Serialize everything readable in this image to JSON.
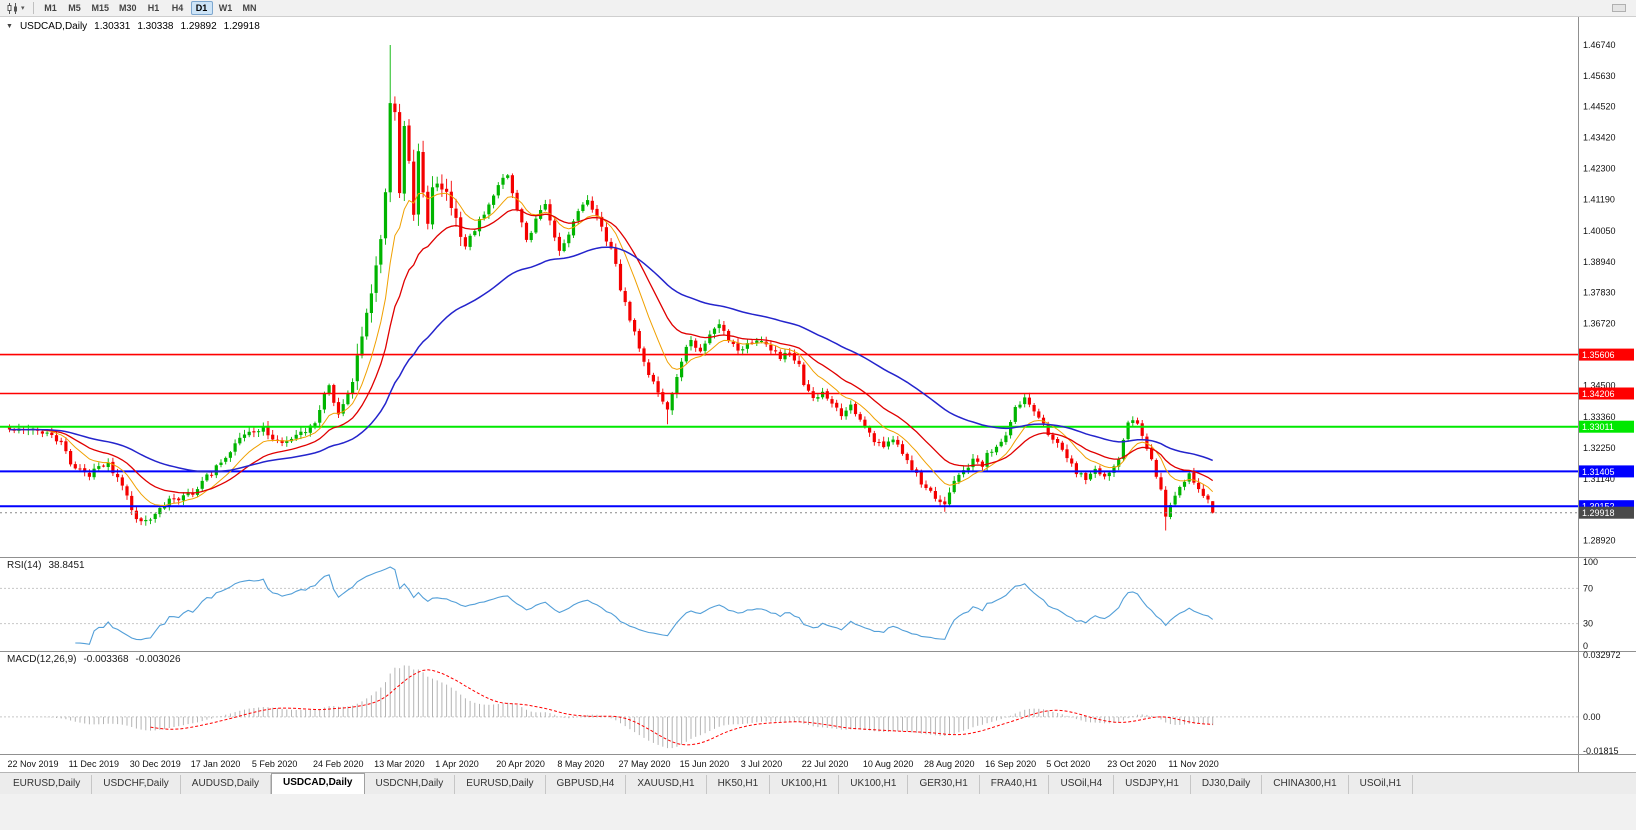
{
  "toolbar": {
    "chart_menu_caret": "▾",
    "timeframes": [
      {
        "label": "M1",
        "active": false
      },
      {
        "label": "M5",
        "active": false
      },
      {
        "label": "M15",
        "active": false
      },
      {
        "label": "M30",
        "active": false
      },
      {
        "label": "H1",
        "active": false
      },
      {
        "label": "H4",
        "active": false
      },
      {
        "label": "D1",
        "active": true
      },
      {
        "label": "W1",
        "active": false
      },
      {
        "label": "MN",
        "active": false
      }
    ]
  },
  "chart": {
    "title": {
      "symbol": "USDCAD,Daily",
      "open": "1.30331",
      "high": "1.30338",
      "low": "1.29892",
      "close": "1.29918"
    },
    "colors": {
      "bull": "#00b400",
      "bear": "#f40000",
      "ma_fast": "#f0a000",
      "ma_mid": "#e00000",
      "ma_slow": "#2424cc",
      "current_tag": "#4a4a4a",
      "rsi_line": "#539fd8",
      "macd_hist": "#b4b4b4",
      "macd_signal": "#ff0000"
    }
  },
  "rsi_panel": {
    "name": "RSI(14)",
    "value": "38.8451",
    "axis": [
      "100",
      "70",
      "30",
      "0"
    ],
    "guide_levels": [
      70,
      30
    ]
  },
  "macd_panel": {
    "name": "MACD(12,26,9)",
    "value_main": "-0.003368",
    "value_signal": "-0.003026",
    "axis_top": "0.032972",
    "axis_zero": "0.00",
    "axis_bottom": "-0.01815"
  },
  "tabs": [
    {
      "label": "EURUSD,Daily",
      "active": false
    },
    {
      "label": "USDCHF,Daily",
      "active": false
    },
    {
      "label": "AUDUSD,Daily",
      "active": false
    },
    {
      "label": "USDCAD,Daily",
      "active": true
    },
    {
      "label": "USDCNH,Daily",
      "active": false
    },
    {
      "label": "EURUSD,Daily",
      "active": false
    },
    {
      "label": "GBPUSD,H4",
      "active": false
    },
    {
      "label": "XAUUSD,H1",
      "active": false
    },
    {
      "label": "HK50,H1",
      "active": false
    },
    {
      "label": "UK100,H1",
      "active": false
    },
    {
      "label": "UK100,H1",
      "active": false
    },
    {
      "label": "GER30,H1",
      "active": false
    },
    {
      "label": "FRA40,H1",
      "active": false
    },
    {
      "label": "USOil,H4",
      "active": false
    },
    {
      "label": "USDJPY,H1",
      "active": false
    },
    {
      "label": "DJ30,Daily",
      "active": false
    },
    {
      "label": "CHINA300,H1",
      "active": false
    },
    {
      "label": "USOil,H1",
      "active": false
    }
  ],
  "chart_data": {
    "type": "candlestick",
    "symbol": "USDCAD",
    "period": "Daily",
    "current_bar": {
      "open": 1.30331,
      "high": 1.30338,
      "low": 1.29892,
      "close": 1.29918
    },
    "visible_price_range": [
      1.28308,
      1.47746
    ],
    "y_axis_ticks": [
      "1.46740",
      "1.45630",
      "1.44520",
      "1.43420",
      "1.42300",
      "1.41190",
      "1.40050",
      "1.38940",
      "1.37830",
      "1.36720",
      "1.35610",
      "1.34500",
      "1.33360",
      "1.32250",
      "1.31140",
      "1.30030",
      "1.28920"
    ],
    "x_axis_ticks": [
      "22 Nov 2019",
      "11 Dec 2019",
      "30 Dec 2019",
      "17 Jan 2020",
      "5 Feb 2020",
      "24 Feb 2020",
      "13 Mar 2020",
      "1 Apr 2020",
      "20 Apr 2020",
      "8 May 2020",
      "27 May 2020",
      "15 Jun 2020",
      "3 Jul 2020",
      "22 Jul 2020",
      "10 Aug 2020",
      "28 Aug 2020",
      "16 Sep 2020",
      "5 Oct 2020",
      "23 Oct 2020",
      "11 Nov 2020"
    ],
    "bars_between_x_ticks": 13,
    "total_bars": 257,
    "close_anchors": [
      [
        0,
        1.3296
      ],
      [
        3,
        1.328
      ],
      [
        6,
        1.3292
      ],
      [
        9,
        1.3262
      ],
      [
        11,
        1.3248
      ],
      [
        13,
        1.3168
      ],
      [
        15,
        1.315
      ],
      [
        17,
        1.3132
      ],
      [
        19,
        1.316
      ],
      [
        21,
        1.3168
      ],
      [
        23,
        1.312
      ],
      [
        25,
        1.3058
      ],
      [
        26,
        1.2992
      ],
      [
        28,
        1.2962
      ],
      [
        30,
        1.2978
      ],
      [
        32,
        1.2998
      ],
      [
        34,
        1.3042
      ],
      [
        36,
        1.3032
      ],
      [
        38,
        1.3056
      ],
      [
        39,
        1.3066
      ],
      [
        41,
        1.3102
      ],
      [
        43,
        1.3138
      ],
      [
        45,
        1.3175
      ],
      [
        47,
        1.3215
      ],
      [
        49,
        1.3262
      ],
      [
        51,
        1.3288
      ],
      [
        52,
        1.3282
      ],
      [
        54,
        1.3296
      ],
      [
        56,
        1.3262
      ],
      [
        58,
        1.3242
      ],
      [
        60,
        1.3256
      ],
      [
        62,
        1.3276
      ],
      [
        64,
        1.3298
      ],
      [
        65,
        1.3312
      ],
      [
        66,
        1.3368
      ],
      [
        67,
        1.343
      ],
      [
        68,
        1.3442
      ],
      [
        69,
        1.3385
      ],
      [
        70,
        1.334
      ],
      [
        71,
        1.3375
      ],
      [
        72,
        1.3412
      ],
      [
        73,
        1.3488
      ],
      [
        74,
        1.3582
      ],
      [
        75,
        1.3648
      ],
      [
        76,
        1.3712
      ],
      [
        77,
        1.3788
      ],
      [
        78,
        1.3858
      ],
      [
        79,
        1.3962
      ],
      [
        80,
        1.4128
      ],
      [
        81,
        1.4482
      ],
      [
        82,
        1.4445
      ],
      [
        83,
        1.415
      ],
      [
        84,
        1.436
      ],
      [
        85,
        1.423
      ],
      [
        86,
        1.408
      ],
      [
        87,
        1.431
      ],
      [
        88,
        1.417
      ],
      [
        89,
        1.403
      ],
      [
        90,
        1.416
      ],
      [
        91,
        1.42
      ],
      [
        93,
        1.4136
      ],
      [
        95,
        1.4038
      ],
      [
        97,
        1.3946
      ],
      [
        99,
        1.4012
      ],
      [
        101,
        1.4072
      ],
      [
        103,
        1.4136
      ],
      [
        104,
        1.4168
      ],
      [
        106,
        1.4208
      ],
      [
        108,
        1.4092
      ],
      [
        110,
        1.3962
      ],
      [
        112,
        1.4046
      ],
      [
        114,
        1.4096
      ],
      [
        116,
        1.3986
      ],
      [
        117,
        1.3932
      ],
      [
        119,
        1.3998
      ],
      [
        121,
        1.4066
      ],
      [
        123,
        1.4112
      ],
      [
        125,
        1.4048
      ],
      [
        127,
        1.3976
      ],
      [
        129,
        1.3892
      ],
      [
        130,
        1.3786
      ],
      [
        132,
        1.3692
      ],
      [
        134,
        1.3586
      ],
      [
        136,
        1.3498
      ],
      [
        138,
        1.3432
      ],
      [
        140,
        1.3372
      ],
      [
        142,
        1.3472
      ],
      [
        143,
        1.3546
      ],
      [
        145,
        1.3612
      ],
      [
        147,
        1.3572
      ],
      [
        149,
        1.3642
      ],
      [
        151,
        1.3676
      ],
      [
        153,
        1.3616
      ],
      [
        155,
        1.3566
      ],
      [
        156,
        1.3586
      ],
      [
        158,
        1.3602
      ],
      [
        160,
        1.3618
      ],
      [
        162,
        1.3578
      ],
      [
        164,
        1.3548
      ],
      [
        166,
        1.3576
      ],
      [
        168,
        1.3516
      ],
      [
        169,
        1.3452
      ],
      [
        171,
        1.3402
      ],
      [
        173,
        1.3422
      ],
      [
        175,
        1.3378
      ],
      [
        177,
        1.3348
      ],
      [
        179,
        1.3378
      ],
      [
        181,
        1.3332
      ],
      [
        182,
        1.3302
      ],
      [
        184,
        1.3252
      ],
      [
        186,
        1.3222
      ],
      [
        188,
        1.3258
      ],
      [
        190,
        1.3198
      ],
      [
        192,
        1.3148
      ],
      [
        194,
        1.3102
      ],
      [
        195,
        1.3088
      ],
      [
        197,
        1.3048
      ],
      [
        199,
        1.3018
      ],
      [
        201,
        1.3098
      ],
      [
        203,
        1.3148
      ],
      [
        205,
        1.3178
      ],
      [
        207,
        1.3158
      ],
      [
        208,
        1.3198
      ],
      [
        210,
        1.3218
      ],
      [
        212,
        1.3278
      ],
      [
        214,
        1.3376
      ],
      [
        216,
        1.3398
      ],
      [
        218,
        1.3348
      ],
      [
        220,
        1.3318
      ],
      [
        221,
        1.3282
      ],
      [
        223,
        1.3248
      ],
      [
        225,
        1.3178
      ],
      [
        227,
        1.3138
      ],
      [
        229,
        1.3118
      ],
      [
        231,
        1.3148
      ],
      [
        233,
        1.3128
      ],
      [
        234,
        1.3138
      ],
      [
        236,
        1.3178
      ],
      [
        238,
        1.3316
      ],
      [
        239,
        1.3328
      ],
      [
        241,
        1.3278
      ],
      [
        243,
        1.3178
      ],
      [
        245,
        1.3078
      ],
      [
        246,
        1.2982
      ],
      [
        247,
        1.3022
      ],
      [
        249,
        1.3095
      ],
      [
        251,
        1.3125
      ],
      [
        253,
        1.3085
      ],
      [
        255,
        1.3035
      ],
      [
        256,
        1.29918
      ]
    ],
    "bar_overrides": [
      {
        "index": 81,
        "high": 1.4674
      },
      {
        "index": 140,
        "low": 1.331
      },
      {
        "index": 199,
        "low": 1.2995
      },
      {
        "index": 246,
        "low": 1.2928
      }
    ],
    "horizontal_levels": [
      {
        "price": 1.35606,
        "color": "#ff0000",
        "width": 1.6,
        "label": "1.35606"
      },
      {
        "price": 1.34206,
        "color": "#ff0000",
        "width": 1.6,
        "label": "1.34206"
      },
      {
        "price": 1.33011,
        "color": "#00e800",
        "width": 2,
        "label": "1.33011"
      },
      {
        "price": 1.31405,
        "color": "#0000ff",
        "width": 2,
        "label": "1.31405"
      },
      {
        "price": 1.30152,
        "color": "#0000ff",
        "width": 2,
        "label": "1.30152"
      }
    ],
    "current_price_line": {
      "price": 1.29918,
      "label": "1.29918"
    },
    "moving_averages": [
      {
        "period": 10,
        "type": "ema",
        "color": "#f0a000",
        "width": 1
      },
      {
        "period": 21,
        "type": "ema",
        "color": "#e00000",
        "width": 1.3
      },
      {
        "period": 55,
        "type": "ema",
        "color": "#2424cc",
        "width": 1.5
      }
    ],
    "indicators": {
      "rsi": {
        "period": 14,
        "current": 38.8451,
        "range": [
          0,
          100
        ],
        "guides": [
          70,
          30
        ]
      },
      "macd": {
        "fast": 12,
        "slow": 26,
        "signal": 9,
        "current_main": -0.003368,
        "current_signal": -0.003026,
        "scale_max": 0.032972,
        "scale_min": -0.01815
      }
    }
  }
}
